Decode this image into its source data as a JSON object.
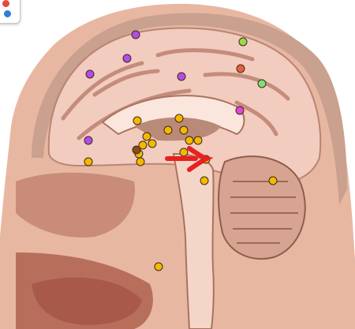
{
  "image": {
    "subject": "sagittal-brain-section",
    "background": "#ffffff"
  },
  "markers": [
    {
      "color": "#b44ce8"
    },
    {
      "color": "#b44ce8"
    },
    {
      "color": "#b44ce8"
    },
    {
      "color": "#b44ce8"
    },
    {
      "color": "#b44ce8"
    },
    {
      "color": "#e545d8"
    },
    {
      "color": "#9bd84a"
    },
    {
      "color": "#e8603a"
    },
    {
      "color": "#7ee07a"
    },
    {
      "color": "#f5b800"
    },
    {
      "color": "#f5b800"
    },
    {
      "color": "#f5b800"
    },
    {
      "color": "#f5b800"
    },
    {
      "color": "#f5b800"
    },
    {
      "color": "#f5b800"
    },
    {
      "color": "#f5b800"
    },
    {
      "color": "#f5b800"
    },
    {
      "color": "#f5b800"
    },
    {
      "color": "#f5b800"
    },
    {
      "color": "#f5b800"
    },
    {
      "color": "#f5b800"
    },
    {
      "color": "#f5b800"
    },
    {
      "color": "#f5b800"
    },
    {
      "color": "#f5b800"
    },
    {
      "color": "#f5b800"
    },
    {
      "color": "#f5b800"
    },
    {
      "color": "#8b4a1a"
    }
  ],
  "arrow": {
    "color": "#e82020",
    "icon": "arrow-right-icon"
  },
  "corner_widget": {
    "icon": "color-palette-icon"
  }
}
